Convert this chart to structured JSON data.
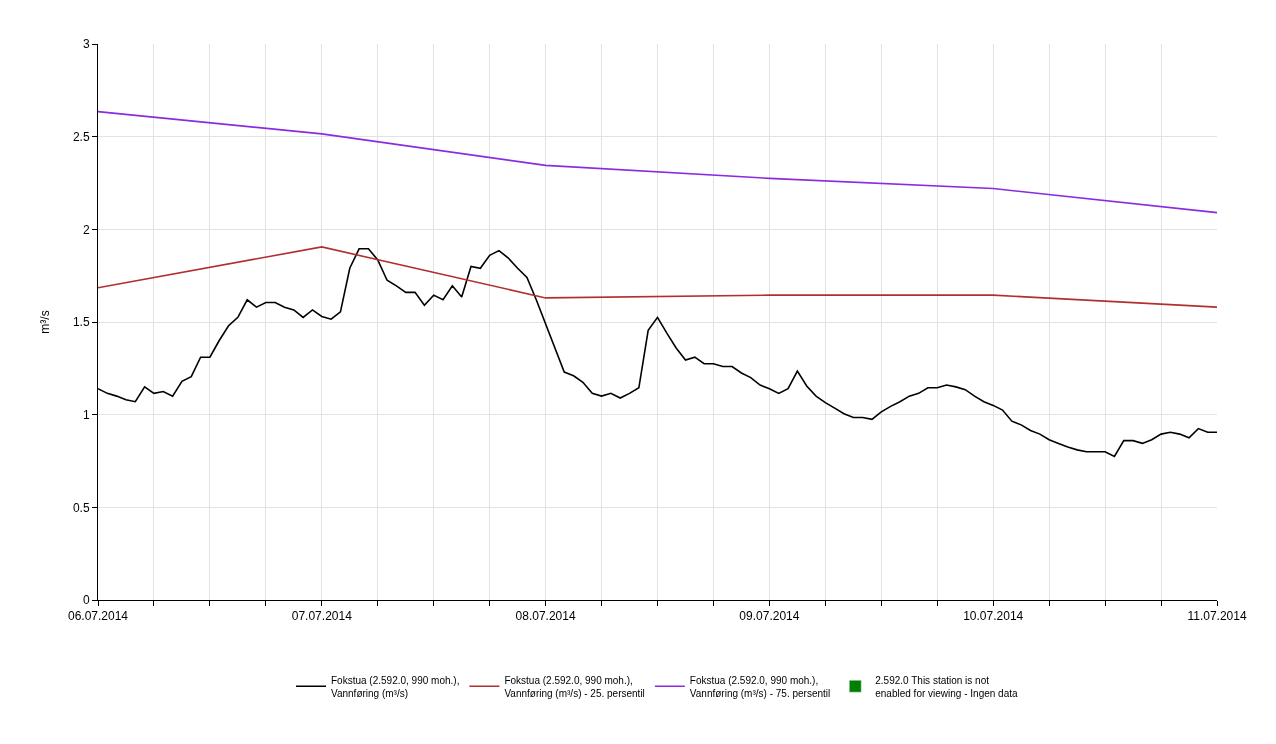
{
  "chart_data": {
    "type": "line",
    "ylabel": "m³/s",
    "legend": "bottom",
    "grid": true,
    "marker": "none",
    "line_style": "solid",
    "xlim": [
      "2014-07-06",
      "2014-07-11"
    ],
    "ylim": [
      0,
      3
    ],
    "yticks": [
      0,
      0.5,
      1,
      1.5,
      2,
      2.5,
      3
    ],
    "xticks": [
      {
        "value": "2014-07-06",
        "label": "06.07.2014"
      },
      {
        "value": "2014-07-06T06:00",
        "label": null
      },
      {
        "value": "2014-07-06T12:00",
        "label": null
      },
      {
        "value": "2014-07-06T18:00",
        "label": null
      },
      {
        "value": "2014-07-07",
        "label": "07.07.2014"
      },
      {
        "value": "2014-07-07T06:00",
        "label": null
      },
      {
        "value": "2014-07-07T12:00",
        "label": null
      },
      {
        "value": "2014-07-07T18:00",
        "label": null
      },
      {
        "value": "2014-07-08",
        "label": "08.07.2014"
      },
      {
        "value": "2014-07-08T06:00",
        "label": null
      },
      {
        "value": "2014-07-08T12:00",
        "label": null
      },
      {
        "value": "2014-07-08T18:00",
        "label": null
      },
      {
        "value": "2014-07-09",
        "label": "09.07.2014"
      },
      {
        "value": "2014-07-09T06:00",
        "label": null
      },
      {
        "value": "2014-07-09T12:00",
        "label": null
      },
      {
        "value": "2014-07-09T18:00",
        "label": null
      },
      {
        "value": "2014-07-10",
        "label": "10.07.2014"
      },
      {
        "value": "2014-07-10T06:00",
        "label": null
      },
      {
        "value": "2014-07-10T12:00",
        "label": null
      },
      {
        "value": "2014-07-10T18:00",
        "label": null
      },
      {
        "value": "2014-07-11",
        "label": "11.07.2014"
      }
    ],
    "series": [
      {
        "name": "Fokstua (2.592.0, 990 moh.), Vannføring (m³/s)",
        "color": "#000000",
        "x": [
          "2014-07-06T00:00",
          "2014-07-06T01:00",
          "2014-07-06T02:00",
          "2014-07-06T03:00",
          "2014-07-06T04:00",
          "2014-07-06T05:00",
          "2014-07-06T06:00",
          "2014-07-06T07:00",
          "2014-07-06T08:00",
          "2014-07-06T09:00",
          "2014-07-06T10:00",
          "2014-07-06T11:00",
          "2014-07-06T12:00",
          "2014-07-06T13:00",
          "2014-07-06T14:00",
          "2014-07-06T15:00",
          "2014-07-06T16:00",
          "2014-07-06T17:00",
          "2014-07-06T18:00",
          "2014-07-06T19:00",
          "2014-07-06T20:00",
          "2014-07-06T21:00",
          "2014-07-06T22:00",
          "2014-07-06T23:00",
          "2014-07-07T00:00",
          "2014-07-07T01:00",
          "2014-07-07T02:00",
          "2014-07-07T03:00",
          "2014-07-07T04:00",
          "2014-07-07T05:00",
          "2014-07-07T06:00",
          "2014-07-07T07:00",
          "2014-07-07T08:00",
          "2014-07-07T09:00",
          "2014-07-07T10:00",
          "2014-07-07T11:00",
          "2014-07-07T12:00",
          "2014-07-07T13:00",
          "2014-07-07T14:00",
          "2014-07-07T15:00",
          "2014-07-07T16:00",
          "2014-07-07T17:00",
          "2014-07-07T18:00",
          "2014-07-07T19:00",
          "2014-07-07T20:00",
          "2014-07-07T21:00",
          "2014-07-07T22:00",
          "2014-07-07T23:00",
          "2014-07-08T02:00",
          "2014-07-08T03:00",
          "2014-07-08T04:00",
          "2014-07-08T05:00",
          "2014-07-08T06:00",
          "2014-07-08T07:00",
          "2014-07-08T08:00",
          "2014-07-08T09:00",
          "2014-07-08T10:00",
          "2014-07-08T11:00",
          "2014-07-08T12:00",
          "2014-07-08T13:00",
          "2014-07-08T14:00",
          "2014-07-08T15:00",
          "2014-07-08T16:00",
          "2014-07-08T17:00",
          "2014-07-08T18:00",
          "2014-07-08T19:00",
          "2014-07-08T20:00",
          "2014-07-08T21:00",
          "2014-07-08T22:00",
          "2014-07-08T23:00",
          "2014-07-09T00:00",
          "2014-07-09T01:00",
          "2014-07-09T02:00",
          "2014-07-09T03:00",
          "2014-07-09T04:00",
          "2014-07-09T05:00",
          "2014-07-09T06:00",
          "2014-07-09T07:00",
          "2014-07-09T08:00",
          "2014-07-09T09:00",
          "2014-07-09T10:00",
          "2014-07-09T11:00",
          "2014-07-09T12:00",
          "2014-07-09T13:00",
          "2014-07-09T14:00",
          "2014-07-09T15:00",
          "2014-07-09T16:00",
          "2014-07-09T17:00",
          "2014-07-09T18:00",
          "2014-07-09T19:00",
          "2014-07-09T20:00",
          "2014-07-09T21:00",
          "2014-07-09T22:00",
          "2014-07-09T23:00",
          "2014-07-10T00:00",
          "2014-07-10T01:00",
          "2014-07-10T02:00",
          "2014-07-10T03:00",
          "2014-07-10T04:00",
          "2014-07-10T05:00",
          "2014-07-10T06:00",
          "2014-07-10T07:00",
          "2014-07-10T08:00",
          "2014-07-10T09:00",
          "2014-07-10T10:00",
          "2014-07-10T11:00",
          "2014-07-10T12:00",
          "2014-07-10T13:00",
          "2014-07-10T14:00",
          "2014-07-10T15:00",
          "2014-07-10T16:00",
          "2014-07-10T17:00",
          "2014-07-10T18:00",
          "2014-07-10T19:00",
          "2014-07-10T20:00",
          "2014-07-10T21:00",
          "2014-07-10T22:00",
          "2014-07-10T23:00",
          "2014-07-11T00:00"
        ],
        "values": [
          1.14,
          1.115,
          1.1,
          1.08,
          1.07,
          1.15,
          1.115,
          1.125,
          1.1,
          1.18,
          1.205,
          1.31,
          1.31,
          1.4,
          1.48,
          1.525,
          1.62,
          1.58,
          1.605,
          1.605,
          1.58,
          1.565,
          1.525,
          1.565,
          1.53,
          1.515,
          1.555,
          1.79,
          1.895,
          1.895,
          1.835,
          1.725,
          1.695,
          1.66,
          1.66,
          1.59,
          1.645,
          1.62,
          1.695,
          1.635,
          1.8,
          1.79,
          1.86,
          1.885,
          1.845,
          1.79,
          1.74,
          1.62,
          1.23,
          1.21,
          1.175,
          1.115,
          1.1,
          1.115,
          1.09,
          1.115,
          1.145,
          1.455,
          1.525,
          1.44,
          1.36,
          1.295,
          1.31,
          1.275,
          1.275,
          1.26,
          1.26,
          1.225,
          1.2,
          1.16,
          1.14,
          1.115,
          1.14,
          1.235,
          1.155,
          1.1,
          1.065,
          1.035,
          1.005,
          0.985,
          0.985,
          0.975,
          1.015,
          1.045,
          1.07,
          1.1,
          1.115,
          1.145,
          1.145,
          1.16,
          1.15,
          1.135,
          1.1,
          1.07,
          1.05,
          1.025,
          0.965,
          0.945,
          0.915,
          0.895,
          0.865,
          0.845,
          0.825,
          0.81,
          0.8,
          0.8,
          0.8,
          0.775,
          0.86,
          0.86,
          0.845,
          0.865,
          0.895,
          0.905,
          0.895,
          0.875,
          0.925,
          0.905,
          0.905
        ]
      },
      {
        "name": "Fokstua (2.592.0, 990 moh.), Vannføring (m³/s) - 25. persentil",
        "color": "#b22f2f",
        "x": [
          "2014-07-06",
          "2014-07-07",
          "2014-07-08",
          "2014-07-09",
          "2014-07-10",
          "2014-07-11"
        ],
        "values": [
          1.685,
          1.905,
          1.63,
          1.645,
          1.645,
          1.58
        ]
      },
      {
        "name": "Fokstua (2.592.0, 990 moh.), Vannføring (m³/s) - 75. persentil",
        "color": "#8a2be2",
        "x": [
          "2014-07-06",
          "2014-07-07",
          "2014-07-08",
          "2014-07-09",
          "2014-07-10",
          "2014-07-11"
        ],
        "values": [
          2.635,
          2.515,
          2.345,
          2.275,
          2.22,
          2.09
        ]
      },
      {
        "name": "2.592.0 This station is not enabled for viewing - Ingen data",
        "color": "#008000",
        "type": "bar"
      }
    ]
  }
}
